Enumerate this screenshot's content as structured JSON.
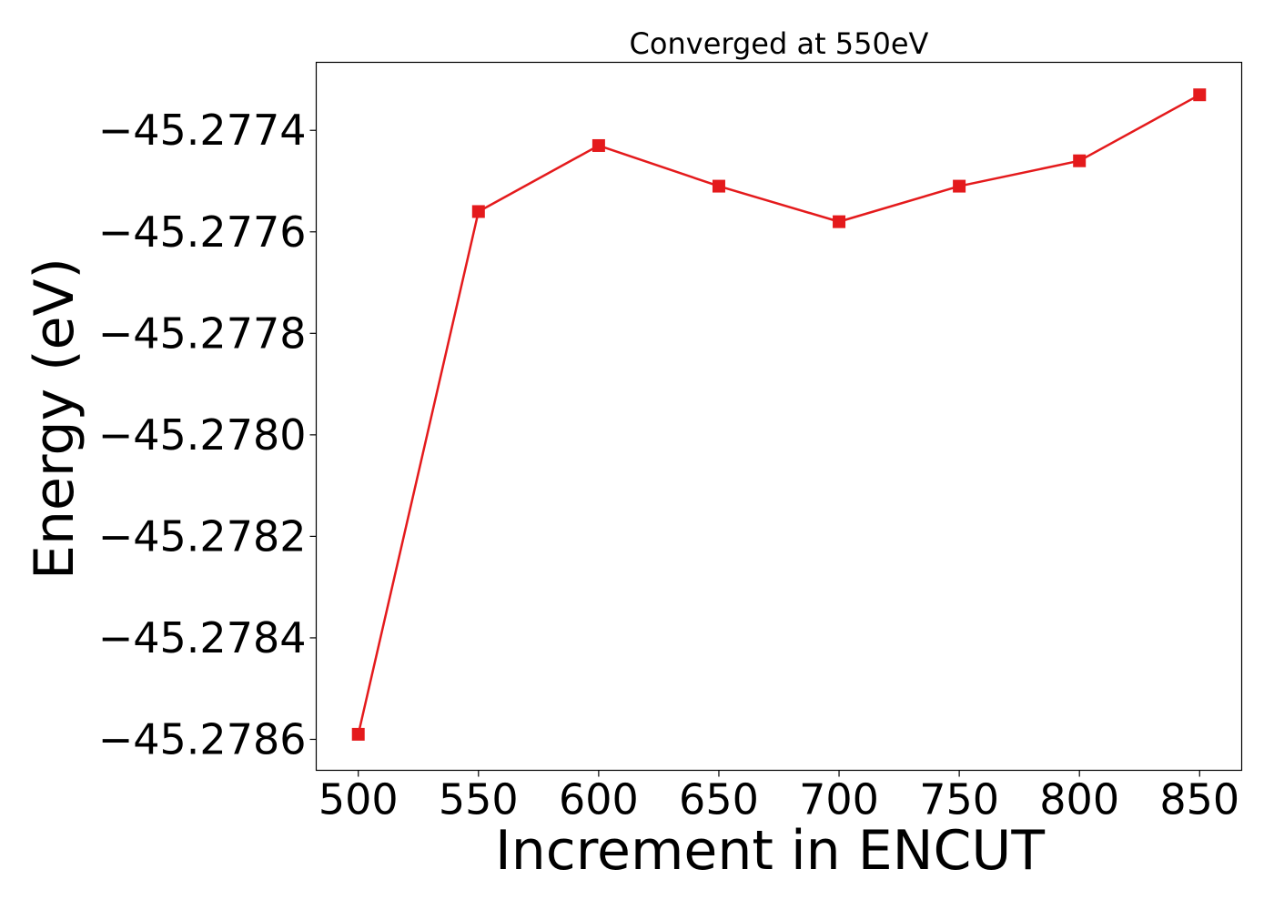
{
  "chart_data": {
    "type": "line",
    "title": "Converged at 550eV",
    "xlabel": "Increment in ENCUT",
    "ylabel": "Energy (eV)",
    "x": [
      500,
      550,
      600,
      650,
      700,
      750,
      800,
      850
    ],
    "series": [
      {
        "values": [
          -45.27859,
          -45.27756,
          -45.27743,
          -45.27751,
          -45.27758,
          -45.27751,
          -45.27746,
          -45.27733
        ],
        "color": "#e41a1c",
        "marker": "square"
      }
    ],
    "xticks": [
      500,
      550,
      600,
      650,
      700,
      750,
      800,
      850
    ],
    "xtick_labels": [
      "500",
      "550",
      "600",
      "650",
      "700",
      "750",
      "800",
      "850"
    ],
    "yticks": [
      -45.2774,
      -45.2776,
      -45.2778,
      -45.278,
      -45.2782,
      -45.2784,
      -45.2786
    ],
    "ytick_labels": [
      "−45.2774",
      "−45.2776",
      "−45.2778",
      "−45.2780",
      "−45.2782",
      "−45.2784",
      "−45.2786"
    ],
    "xlim": [
      482.5,
      867.5
    ],
    "ylim": [
      -45.278661,
      -45.277266
    ],
    "grid": false,
    "legend": "none"
  }
}
